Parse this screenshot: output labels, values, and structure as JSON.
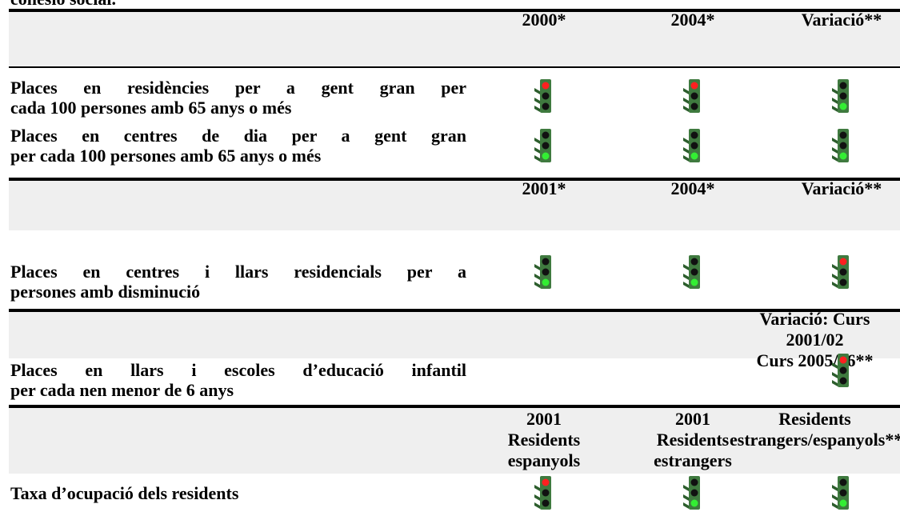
{
  "intro": "cohesió social.",
  "sections": [
    {
      "headers": [
        "2000*",
        "2004*",
        "Variació**"
      ],
      "rows": [
        {
          "label_lines": [
            "Places en residències per a gent gran per",
            "cada 100 persones amb 65 anys o més"
          ]
        },
        {
          "label_lines": [
            "Places en centres de dia per a gent gran",
            "per cada 100 persones amb 65 anys o més"
          ]
        }
      ]
    },
    {
      "headers": [
        "2001*",
        "2004*",
        "Variació**"
      ],
      "rows": [
        {
          "label_lines": [
            "Places en centres i llars residencials per a",
            "persones amb disminució"
          ]
        }
      ]
    },
    {
      "headers": [
        "Variació: Curs 2001/02",
        "Curs 2005/06**"
      ],
      "rows": [
        {
          "label_lines": [
            "Places en llars i escoles d’educació infantil",
            "per cada nen menor de 6 anys"
          ]
        }
      ]
    },
    {
      "headers": [
        [
          "2001",
          "Residents",
          "espanyols"
        ],
        [
          "2001",
          "Residents",
          "estrangers"
        ],
        [
          "Residents",
          "estrangers/espanyols***"
        ]
      ],
      "rows": [
        {
          "label_lines": [
            "Taxa d’ocupació dels residents"
          ]
        }
      ]
    }
  ]
}
